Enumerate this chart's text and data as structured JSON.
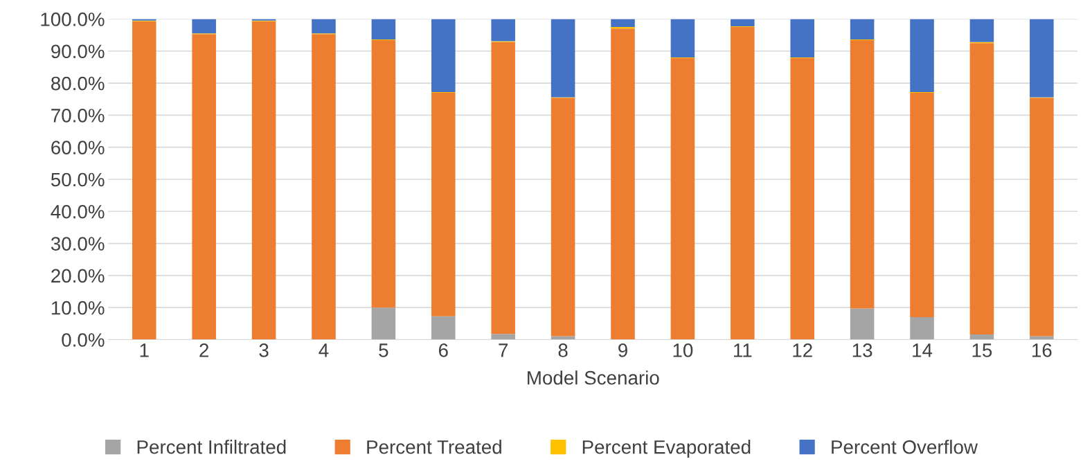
{
  "chart_data": {
    "type": "bar",
    "stacked": true,
    "xlabel": "Model Scenario",
    "categories": [
      "1",
      "2",
      "3",
      "4",
      "5",
      "6",
      "7",
      "8",
      "9",
      "10",
      "11",
      "12",
      "13",
      "14",
      "15",
      "16"
    ],
    "series": [
      {
        "name": "Percent Infiltrated",
        "color": "#a5a5a5",
        "values": [
          0,
          0,
          0,
          0,
          10.0,
          7.3,
          1.8,
          1.1,
          0,
          0,
          0,
          0,
          9.7,
          7.0,
          1.6,
          1.1
        ]
      },
      {
        "name": "Percent Treated",
        "color": "#ed7d31",
        "values": [
          99.3,
          95.3,
          99.3,
          95.3,
          83.4,
          69.7,
          91.0,
          74.3,
          97.0,
          87.8,
          97.5,
          87.8,
          83.7,
          70.0,
          90.9,
          74.3
        ]
      },
      {
        "name": "Percent Evaporated",
        "color": "#ffc000",
        "values": [
          0.2,
          0.2,
          0.2,
          0.2,
          0.2,
          0.2,
          0.3,
          0.2,
          0.5,
          0.2,
          0.2,
          0.2,
          0.2,
          0.2,
          0.3,
          0.2
        ]
      },
      {
        "name": "Percent Overflow",
        "color": "#4472c4",
        "values": [
          0.5,
          4.5,
          0.5,
          4.5,
          6.4,
          22.8,
          6.9,
          24.4,
          2.5,
          12.0,
          2.3,
          12.0,
          6.4,
          22.8,
          7.2,
          24.4
        ]
      }
    ],
    "ylim": [
      0,
      100
    ],
    "yticks": [
      {
        "value": 0,
        "label": "0.0%"
      },
      {
        "value": 10,
        "label": "10.0%"
      },
      {
        "value": 20,
        "label": "20.0%"
      },
      {
        "value": 30,
        "label": "30.0%"
      },
      {
        "value": 40,
        "label": "40.0%"
      },
      {
        "value": 50,
        "label": "50.0%"
      },
      {
        "value": 60,
        "label": "60.0%"
      },
      {
        "value": 70,
        "label": "70.0%"
      },
      {
        "value": 80,
        "label": "80.0%"
      },
      {
        "value": 90,
        "label": "90.0%"
      },
      {
        "value": 100,
        "label": "100.0%"
      }
    ],
    "grid": "y",
    "legend": "bottom"
  }
}
